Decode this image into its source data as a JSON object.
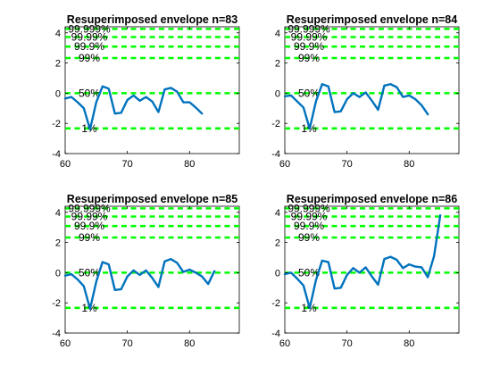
{
  "figure": {
    "colors": {
      "series": "#0072bd",
      "reference": "#00ff00"
    }
  },
  "chart_data": [
    {
      "type": "line",
      "title": "Resuperimposed envelope n=83",
      "xlim": [
        60,
        88
      ],
      "ylim": [
        -4,
        4.4
      ],
      "xticks": [
        60,
        70,
        80
      ],
      "yticks": [
        -4,
        -2,
        0,
        2,
        4
      ],
      "reference_lines": [
        {
          "label": "99.999%",
          "y": 4.26
        },
        {
          "label": "99.99%",
          "y": 3.72
        },
        {
          "label": "99.9%",
          "y": 3.09
        },
        {
          "label": "99%",
          "y": 2.33
        },
        {
          "label": "50%",
          "y": 0
        },
        {
          "label": "1%",
          "y": -2.33
        }
      ],
      "series": [
        {
          "x": [
            60,
            61,
            62,
            63,
            64,
            65,
            66,
            67,
            68,
            69,
            70,
            71,
            72,
            73,
            74,
            75,
            76,
            77,
            78,
            79,
            80,
            81,
            82
          ],
          "y": [
            -0.35,
            -0.25,
            -0.6,
            -1.0,
            -2.4,
            -0.6,
            0.45,
            0.3,
            -1.35,
            -1.3,
            -0.45,
            -0.15,
            -0.5,
            -0.25,
            -0.55,
            -1.25,
            0.25,
            0.35,
            0.1,
            -0.6,
            -0.6,
            -0.95,
            -1.35
          ]
        }
      ],
      "grid": false
    },
    {
      "type": "line",
      "title": "Resuperimposed envelope n=84",
      "xlim": [
        60,
        88
      ],
      "ylim": [
        -4,
        4.4
      ],
      "xticks": [
        60,
        70,
        80
      ],
      "yticks": [
        -4,
        -2,
        0,
        2,
        4
      ],
      "reference_lines": [
        {
          "label": "99.999%",
          "y": 4.26
        },
        {
          "label": "99.99%",
          "y": 3.72
        },
        {
          "label": "99.9%",
          "y": 3.09
        },
        {
          "label": "99%",
          "y": 2.33
        },
        {
          "label": "50%",
          "y": 0
        },
        {
          "label": "1%",
          "y": -2.33
        }
      ],
      "series": [
        {
          "x": [
            60,
            61,
            62,
            63,
            64,
            65,
            66,
            67,
            68,
            69,
            70,
            71,
            72,
            73,
            74,
            75,
            76,
            77,
            78,
            79,
            80,
            81,
            82,
            83
          ],
          "y": [
            -0.2,
            -0.15,
            -0.55,
            -0.95,
            -2.35,
            -0.55,
            0.6,
            0.45,
            -1.25,
            -1.2,
            -0.4,
            0.0,
            -0.25,
            0.05,
            -0.5,
            -1.1,
            0.5,
            0.6,
            0.4,
            -0.25,
            -0.15,
            -0.4,
            -0.8,
            -1.4
          ]
        }
      ],
      "grid": false
    },
    {
      "type": "line",
      "title": "Resuperimposed envelope n=85",
      "xlim": [
        60,
        88
      ],
      "ylim": [
        -4,
        4.4
      ],
      "xticks": [
        60,
        70,
        80
      ],
      "yticks": [
        -4,
        -2,
        0,
        2,
        4
      ],
      "reference_lines": [
        {
          "label": "99.999%",
          "y": 4.26
        },
        {
          "label": "99.99%",
          "y": 3.72
        },
        {
          "label": "99.9%",
          "y": 3.09
        },
        {
          "label": "99%",
          "y": 2.33
        },
        {
          "label": "50%",
          "y": 0
        },
        {
          "label": "1%",
          "y": -2.33
        }
      ],
      "series": [
        {
          "x": [
            60,
            61,
            62,
            63,
            64,
            65,
            66,
            67,
            68,
            69,
            70,
            71,
            72,
            73,
            74,
            75,
            76,
            77,
            78,
            79,
            80,
            81,
            82,
            83,
            84
          ],
          "y": [
            -0.2,
            -0.1,
            -0.45,
            -0.9,
            -2.4,
            -0.6,
            0.7,
            0.55,
            -1.15,
            -1.1,
            -0.25,
            0.15,
            -0.15,
            0.15,
            -0.35,
            -0.95,
            0.75,
            0.9,
            0.65,
            0.05,
            0.2,
            0.0,
            -0.25,
            -0.75,
            0.1
          ]
        }
      ],
      "grid": false
    },
    {
      "type": "line",
      "title": "Resuperimposed envelope n=86",
      "xlim": [
        60,
        88
      ],
      "ylim": [
        -4,
        4.4
      ],
      "xticks": [
        60,
        70,
        80
      ],
      "yticks": [
        -4,
        -2,
        0,
        2,
        4
      ],
      "reference_lines": [
        {
          "label": "99.999%",
          "y": 4.26
        },
        {
          "label": "99.99%",
          "y": 3.72
        },
        {
          "label": "99.9%",
          "y": 3.09
        },
        {
          "label": "99%",
          "y": 2.33
        },
        {
          "label": "50%",
          "y": 0
        },
        {
          "label": "1%",
          "y": -2.33
        }
      ],
      "series": [
        {
          "x": [
            60,
            61,
            62,
            63,
            64,
            65,
            66,
            67,
            68,
            69,
            70,
            71,
            72,
            73,
            74,
            75,
            76,
            77,
            78,
            79,
            80,
            81,
            82,
            83,
            84,
            85
          ],
          "y": [
            -0.1,
            0.0,
            -0.4,
            -0.85,
            -2.35,
            -0.5,
            0.8,
            0.7,
            -1.05,
            -1.0,
            -0.15,
            0.3,
            0.0,
            0.35,
            -0.25,
            -0.8,
            0.9,
            1.05,
            0.85,
            0.3,
            0.55,
            0.4,
            0.35,
            -0.3,
            1.1,
            3.8
          ]
        }
      ],
      "grid": false
    }
  ]
}
